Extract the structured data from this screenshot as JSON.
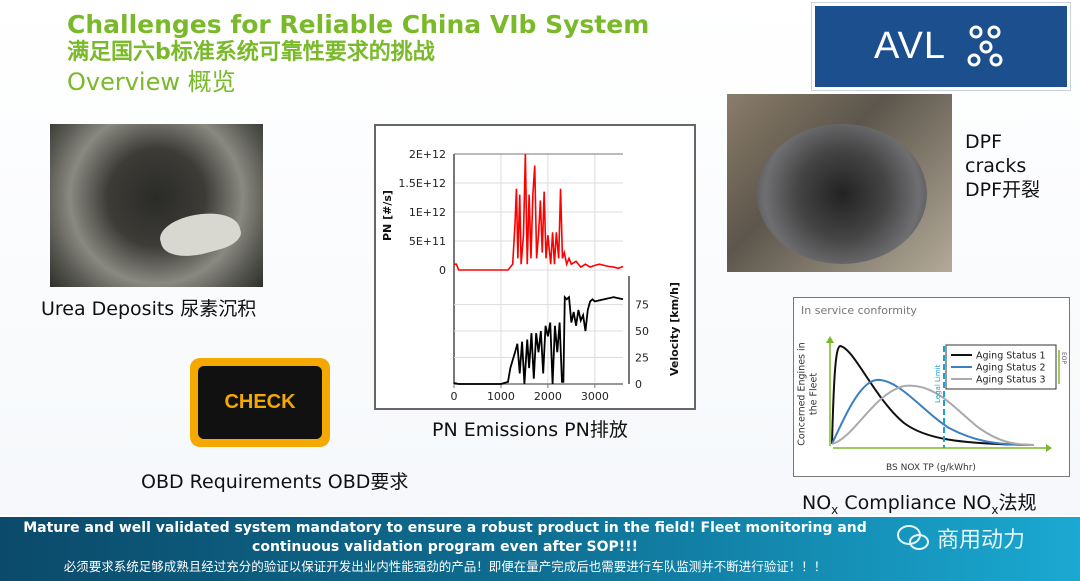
{
  "header": {
    "title_en": "Challenges for Reliable China VIb System",
    "title_cn": "满足国六b标准系统可靠性要求的挑战",
    "subtitle": "Overview 概览"
  },
  "logo": {
    "text": "AVL"
  },
  "urea": {
    "caption": "Urea Deposits 尿素沉积"
  },
  "obd": {
    "icon_text": "CHECK",
    "caption": "OBD Requirements OBD要求",
    "color": "#f5a800"
  },
  "pn": {
    "caption": "PN Emissions PN排放"
  },
  "dpf": {
    "line1": "DPF",
    "line2": "cracks",
    "line3": "DPF开裂"
  },
  "nox": {
    "caption_pre": "NO",
    "caption_sub": "x",
    "caption_mid": " Compliance NO",
    "caption_sub2": "x",
    "caption_post": "法规"
  },
  "banner": {
    "line1": "Mature and well validated system mandatory to ensure a robust product in the field! Fleet monitoring and continuous validation program even after SOP!!!",
    "line2": "必须要求系统足够成熟且经过充分的验证以保证开发出业内性能强劲的产品！即便在量产完成后也需要进行车队监测并不断进行验证！！！"
  },
  "watermark": {
    "text": "商用动力"
  },
  "chart_data": [
    {
      "type": "line",
      "ylabel": "PN [#/s]",
      "yticks": [
        "2E+12",
        "1.5E+12",
        "1E+12",
        "5E+11",
        "0"
      ],
      "ylim": [
        0,
        2000000000000.0
      ],
      "xlim": [
        0,
        3600
      ],
      "color": "#ff0000",
      "x": [
        0,
        50,
        100,
        1150,
        1250,
        1300,
        1330,
        1360,
        1400,
        1430,
        1480,
        1520,
        1560,
        1600,
        1640,
        1680,
        1720,
        1760,
        1800,
        1840,
        1880,
        1920,
        1960,
        2000,
        2060,
        2100,
        2140,
        2180,
        2230,
        2270,
        2310,
        2350,
        2400,
        2450,
        2500,
        2600,
        2700,
        2800,
        2900,
        3000,
        3100,
        3200,
        3300,
        3400,
        3500,
        3600
      ],
      "y": [
        100000000000.0,
        100000000000.0,
        0,
        0,
        100000000000.0,
        800000000000.0,
        1400000000000.0,
        200000000000.0,
        1300000000000.0,
        100000000000.0,
        600000000000.0,
        2000000000000.0,
        100000000000.0,
        1300000000000.0,
        200000000000.0,
        1300000000000.0,
        1800000000000.0,
        200000000000.0,
        600000000000.0,
        1200000000000.0,
        300000000000.0,
        1350000000000.0,
        200000000000.0,
        600000000000.0,
        100000000000.0,
        650000000000.0,
        100000000000.0,
        650000000000.0,
        200000000000.0,
        1400000000000.0,
        200000000000.0,
        300000000000.0,
        100000000000.0,
        200000000000.0,
        100000000000.0,
        150000000000.0,
        50000000000.0,
        100000000000.0,
        50000000000.0,
        80000000000.0,
        100000000000.0,
        80000000000.0,
        60000000000.0,
        50000000000.0,
        30000000000.0,
        60000000000.0
      ]
    },
    {
      "type": "line",
      "xlabel": "",
      "ylabel": "Velocity [km/h]",
      "yticks": [
        "75",
        "50",
        "25",
        "0"
      ],
      "xticks": [
        "0",
        "1000",
        "2000",
        "3000"
      ],
      "ylim": [
        0,
        85
      ],
      "xlim": [
        0,
        3600
      ],
      "color": "#000000",
      "x": [
        0,
        100,
        1000,
        1150,
        1200,
        1300,
        1350,
        1400,
        1450,
        1500,
        1560,
        1600,
        1650,
        1700,
        1750,
        1800,
        1850,
        1900,
        1950,
        2000,
        2050,
        2100,
        2150,
        2200,
        2250,
        2300,
        2330,
        2360,
        2400,
        2450,
        2500,
        2550,
        2600,
        2650,
        2700,
        2750,
        2800,
        2850,
        2900,
        2950,
        3000,
        3200,
        3400,
        3600
      ],
      "y": [
        1,
        0,
        0,
        2,
        15,
        30,
        38,
        10,
        40,
        0,
        42,
        15,
        48,
        5,
        48,
        30,
        50,
        10,
        55,
        45,
        58,
        0,
        55,
        30,
        58,
        2,
        2,
        82,
        80,
        82,
        58,
        68,
        55,
        70,
        60,
        65,
        50,
        70,
        78,
        80,
        78,
        80,
        82,
        80
      ]
    },
    {
      "type": "line",
      "title": "In service conformity",
      "xlabel": "BS NOX TP (g/kWhr)",
      "ylabel": "Concerned Engines in the Fleet",
      "annotations": [
        "Legal Limit",
        "EOP"
      ],
      "series": [
        {
          "name": "Aging Status 1",
          "color": "#111111"
        },
        {
          "name": "Aging Status 2",
          "color": "#3c7fc0"
        },
        {
          "name": "Aging Status 3",
          "color": "#aaaaaa"
        }
      ]
    }
  ]
}
